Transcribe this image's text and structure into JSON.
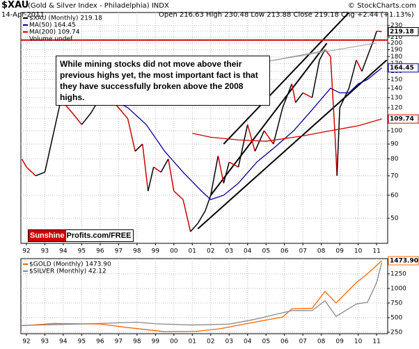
{
  "header": {
    "symbol": "$XAU",
    "name": "(Gold & Silver Index - Philadelphia) INDX",
    "source": "© StockCharts.com",
    "date": "14-Apr-2011",
    "quote": "Open 216.63 High 230.48 Low 213.88 Close 219.18 Chg +2.44 (+1.13%)"
  },
  "annotation": "While mining stocks did not move above their previous highs yet, the most important fact is that they have successfully broken above the 2008 highs.",
  "promo": {
    "brand": "Sunshine",
    "rest": "Profits.com/FREE"
  },
  "chart_data": [
    {
      "type": "line",
      "log_scale": true,
      "grid": true,
      "legend": "top-left",
      "legend_note": "Volume undef",
      "xlim": [
        1991.7,
        2011.6
      ],
      "ylim": [
        41,
        255
      ],
      "xticks": [
        {
          "value": 1992,
          "label": "92"
        },
        {
          "value": 1993,
          "label": "93"
        },
        {
          "value": 1994,
          "label": "94"
        },
        {
          "value": 1995,
          "label": "95"
        },
        {
          "value": 1996,
          "label": "96"
        },
        {
          "value": 1997,
          "label": "97"
        },
        {
          "value": 1998,
          "label": "98"
        },
        {
          "value": 1999,
          "label": "99"
        },
        {
          "value": 2000,
          "label": "00"
        },
        {
          "value": 2001,
          "label": "01"
        },
        {
          "value": 2002,
          "label": "02"
        },
        {
          "value": 2003,
          "label": "03"
        },
        {
          "value": 2004,
          "label": "04"
        },
        {
          "value": 2005,
          "label": "05"
        },
        {
          "value": 2006,
          "label": "06"
        },
        {
          "value": 2007,
          "label": "07"
        },
        {
          "value": 2008,
          "label": "08"
        },
        {
          "value": 2009,
          "label": "09"
        },
        {
          "value": 2010,
          "label": "10"
        },
        {
          "value": 2011,
          "label": "11"
        }
      ],
      "yticks": [
        50,
        60,
        70,
        80,
        90,
        100,
        110,
        120,
        130,
        140,
        150,
        160,
        170,
        180,
        190,
        200,
        210,
        220,
        230
      ],
      "series": [
        {
          "name": "$XAU (Monthly) 219.18",
          "color": "#000000",
          "down_color": "#cc0000",
          "x": [
            1991.75,
            1992.0,
            1992.5,
            1993.0,
            1993.5,
            1993.9,
            1994.0,
            1994.5,
            1995.0,
            1995.5,
            1996.0,
            1996.3,
            1996.75,
            1997.0,
            1997.5,
            1997.9,
            1998.3,
            1998.6,
            1998.9,
            1999.3,
            1999.7,
            2000.0,
            2000.5,
            2000.9,
            2001.3,
            2001.7,
            2002.0,
            2002.4,
            2002.7,
            2003.0,
            2003.5,
            2004.0,
            2004.4,
            2004.9,
            2005.4,
            2005.9,
            2006.4,
            2006.6,
            2007.0,
            2007.5,
            2007.9,
            2008.2,
            2008.5,
            2008.75,
            2008.85,
            2009.0,
            2009.5,
            2009.9,
            2010.2,
            2010.5,
            2010.9,
            2011.0,
            2011.28
          ],
          "values": [
            80,
            75,
            70,
            72,
            100,
            130,
            125,
            115,
            105,
            115,
            130,
            145,
            125,
            120,
            110,
            85,
            90,
            62,
            75,
            72,
            80,
            62,
            58,
            45,
            48,
            53,
            60,
            82,
            66,
            78,
            75,
            105,
            85,
            100,
            90,
            120,
            145,
            125,
            135,
            130,
            175,
            190,
            180,
            95,
            70,
            120,
            140,
            175,
            160,
            180,
            210,
            220,
            219.18
          ]
        },
        {
          "name": "MA(50) 164.45",
          "color": "#000099",
          "x": [
            1995.5,
            1996.5,
            1997.5,
            1998.5,
            1999.5,
            2000.5,
            2001.5,
            2002.0,
            2002.7,
            2003.5,
            2004.5,
            2005.5,
            2006.5,
            2007.5,
            2008.5,
            2009.0,
            2009.5,
            2010.0,
            2010.5,
            2011.28
          ],
          "values": [
            135,
            130,
            120,
            105,
            85,
            72,
            62,
            58,
            60,
            66,
            78,
            88,
            100,
            118,
            140,
            135,
            135,
            145,
            150,
            164.45
          ]
        },
        {
          "name": "MA(200) 109.74",
          "color": "#cc0000",
          "x": [
            2001.0,
            2002.0,
            2003.5,
            2005.0,
            2007.0,
            2008.5,
            2010.0,
            2011.28
          ],
          "values": [
            98,
            95,
            93,
            92,
            96,
            100,
            104,
            109.74
          ]
        }
      ],
      "price_tags": [
        219.18,
        164.45,
        109.74
      ],
      "trendlines": [
        {
          "color": "#000000",
          "x": [
            2002.7,
            2009.5
          ],
          "y": [
            90,
            255
          ]
        },
        {
          "color": "#000000",
          "x": [
            2001.3,
            2011.55
          ],
          "y": [
            46,
            175
          ]
        },
        {
          "color": "#000000",
          "x": [
            2002.0,
            2008.3
          ],
          "y": [
            60,
            200
          ]
        },
        {
          "color": "#cc0000",
          "x": [
            1991.7,
            2011.6
          ],
          "y": [
            205,
            205
          ]
        }
      ]
    },
    {
      "type": "line",
      "grid": true,
      "legend": "top-left",
      "xlim": [
        1991.7,
        2011.6
      ],
      "ylim": [
        225,
        1510
      ],
      "y2lim": [
        -1,
        44.5
      ],
      "xticks": [
        {
          "value": 1992,
          "label": "92"
        },
        {
          "value": 1993,
          "label": "93"
        },
        {
          "value": 1994,
          "label": "94"
        },
        {
          "value": 1995,
          "label": "95"
        },
        {
          "value": 1996,
          "label": "96"
        },
        {
          "value": 1997,
          "label": "97"
        },
        {
          "value": 1998,
          "label": "98"
        },
        {
          "value": 1999,
          "label": "99"
        },
        {
          "value": 2000,
          "label": "00"
        },
        {
          "value": 2001,
          "label": "01"
        },
        {
          "value": 2002,
          "label": "02"
        },
        {
          "value": 2003,
          "label": "03"
        },
        {
          "value": 2004,
          "label": "04"
        },
        {
          "value": 2005,
          "label": "05"
        },
        {
          "value": 2006,
          "label": "06"
        },
        {
          "value": 2007,
          "label": "07"
        },
        {
          "value": 2008,
          "label": "08"
        },
        {
          "value": 2009,
          "label": "09"
        },
        {
          "value": 2010,
          "label": "10"
        },
        {
          "value": 2011,
          "label": "11"
        }
      ],
      "yticks": [
        250,
        500,
        750,
        1000,
        1250
      ],
      "series": [
        {
          "name": "$GOLD (Monthly) 1473.90",
          "color": "#ff6600",
          "x": [
            1991.75,
            1993.5,
            1996.0,
            1997.5,
            1999.5,
            2001.2,
            2002.5,
            2004.0,
            2005.9,
            2006.4,
            2007.5,
            2008.2,
            2008.8,
            2009.9,
            2010.5,
            2011.28
          ],
          "values": [
            360,
            400,
            390,
            330,
            260,
            265,
            310,
            400,
            510,
            650,
            660,
            950,
            750,
            1100,
            1250,
            1473.9
          ]
        },
        {
          "name": "$SILVER (Monthly) 42.12",
          "color": "#888888",
          "axis": "y2",
          "x": [
            1991.75,
            1993.5,
            1996.0,
            1998.0,
            1999.0,
            2001.0,
            2003.0,
            2004.3,
            2006.4,
            2007.5,
            2008.2,
            2008.8,
            2009.9,
            2010.5,
            2011.0,
            2011.28
          ],
          "values": [
            4,
            4.5,
            5.2,
            6,
            5,
            4.3,
            4.8,
            7.5,
            13,
            13,
            19,
            9.5,
            17,
            18,
            30,
            42.12
          ]
        }
      ],
      "price_tags": [
        {
          "value": 1473.9,
          "label": "1473.90"
        }
      ]
    }
  ]
}
